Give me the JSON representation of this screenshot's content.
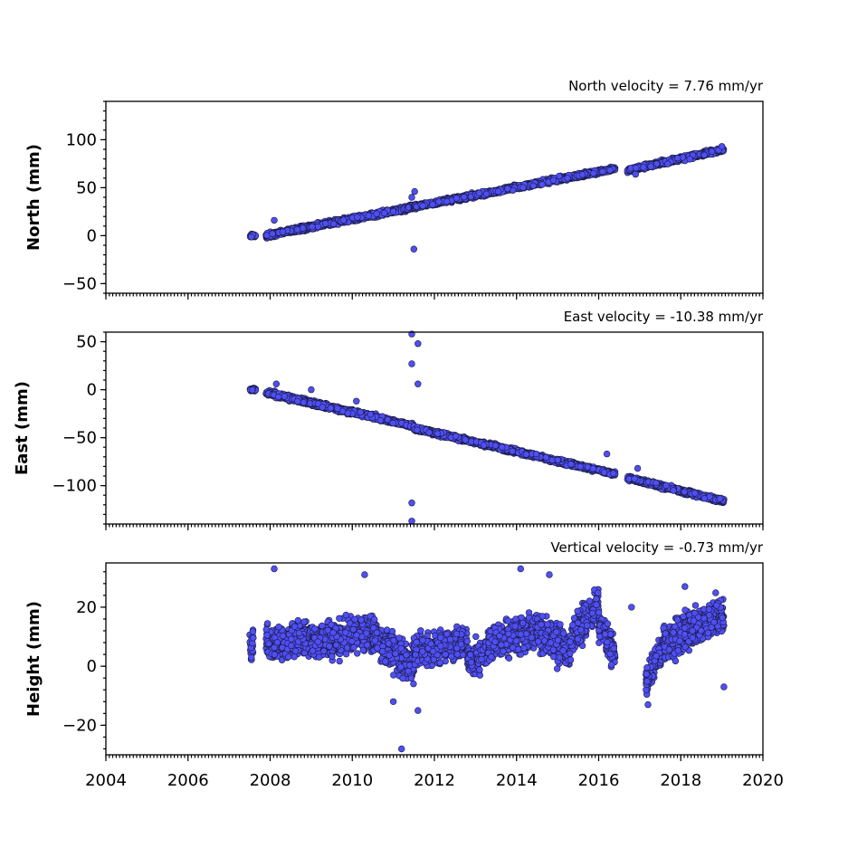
{
  "chart_data": [
    {
      "type": "scatter",
      "title": "North velocity = 7.76 mm/yr",
      "ylabel": "North (mm)",
      "xlim": [
        2004,
        2020
      ],
      "ylim": [
        -60,
        140
      ],
      "yticks": [
        -50,
        0,
        50,
        100
      ],
      "marker_color": "#4f4ff5",
      "segments": [
        {
          "x0": 2007.5,
          "x1": 2007.65,
          "y0": 0,
          "y1": 0,
          "noise": 1.5
        },
        {
          "x0": 2007.9,
          "x1": 2011.5,
          "y0": 0,
          "y1": 30,
          "noise": 2.5
        },
        {
          "x0": 2011.5,
          "x1": 2016.4,
          "y0": 30,
          "y1": 70,
          "noise": 2.2
        },
        {
          "x0": 2016.7,
          "x1": 2019.05,
          "y0": 68,
          "y1": 90,
          "noise": 2.2
        }
      ],
      "outliers": [
        {
          "x": 2011.5,
          "y": -14
        },
        {
          "x": 2011.52,
          "y": 46
        },
        {
          "x": 2011.45,
          "y": 40
        },
        {
          "x": 2008.1,
          "y": 16
        },
        {
          "x": 2016.9,
          "y": 64
        },
        {
          "x": 2019.0,
          "y": 93
        }
      ]
    },
    {
      "type": "scatter",
      "title": "East velocity = -10.38 mm/yr",
      "ylabel": "East (mm)",
      "xlim": [
        2004,
        2020
      ],
      "ylim": [
        -140,
        60
      ],
      "yticks": [
        -100,
        -50,
        0,
        50
      ],
      "marker_color": "#4f4ff5",
      "segments": [
        {
          "x0": 2007.5,
          "x1": 2007.65,
          "y0": 0,
          "y1": 0,
          "noise": 1.5
        },
        {
          "x0": 2007.9,
          "x1": 2011.5,
          "y0": -3,
          "y1": -38,
          "noise": 2.5
        },
        {
          "x0": 2011.5,
          "x1": 2016.4,
          "y0": -40,
          "y1": -88,
          "noise": 2.3
        },
        {
          "x0": 2016.7,
          "x1": 2019.05,
          "y0": -92,
          "y1": -116,
          "noise": 2.3
        }
      ],
      "outliers": [
        {
          "x": 2011.45,
          "y": 58
        },
        {
          "x": 2011.6,
          "y": 48
        },
        {
          "x": 2011.45,
          "y": 27
        },
        {
          "x": 2011.6,
          "y": 6
        },
        {
          "x": 2011.45,
          "y": -118
        },
        {
          "x": 2011.45,
          "y": -137
        },
        {
          "x": 2008.15,
          "y": 6
        },
        {
          "x": 2009.0,
          "y": 0
        },
        {
          "x": 2010.1,
          "y": -12
        },
        {
          "x": 2016.2,
          "y": -67
        },
        {
          "x": 2016.95,
          "y": -82
        }
      ]
    },
    {
      "type": "scatter",
      "title": "Vertical velocity = -0.73 mm/yr",
      "ylabel": "Height (mm)",
      "xlim": [
        2004,
        2020
      ],
      "ylim": [
        -30,
        35
      ],
      "yticks": [
        -20,
        0,
        20
      ],
      "xticks": [
        2004,
        2006,
        2008,
        2010,
        2012,
        2014,
        2016,
        2018,
        2020
      ],
      "marker_color": "#4f4ff5",
      "segments": [
        {
          "x0": 2007.5,
          "x1": 2007.6,
          "y0": 5,
          "y1": 8,
          "noise": 5
        },
        {
          "x0": 2007.9,
          "x1": 2009.0,
          "y0": 8,
          "y1": 10,
          "noise": 6
        },
        {
          "x0": 2009.0,
          "x1": 2010.5,
          "y0": 8,
          "y1": 12,
          "noise": 6
        },
        {
          "x0": 2010.5,
          "x1": 2011.5,
          "y0": 10,
          "y1": 0,
          "noise": 6
        },
        {
          "x0": 2011.5,
          "x1": 2012.8,
          "y0": 5,
          "y1": 8,
          "noise": 5
        },
        {
          "x0": 2012.8,
          "x1": 2013.3,
          "y0": 2,
          "y1": 5,
          "noise": 5
        },
        {
          "x0": 2013.3,
          "x1": 2014.5,
          "y0": 8,
          "y1": 12,
          "noise": 6
        },
        {
          "x0": 2014.5,
          "x1": 2015.3,
          "y0": 12,
          "y1": 6,
          "noise": 6
        },
        {
          "x0": 2015.3,
          "x1": 2016.0,
          "y0": 8,
          "y1": 22,
          "noise": 6
        },
        {
          "x0": 2016.0,
          "x1": 2016.4,
          "y0": 15,
          "y1": 3,
          "noise": 5
        },
        {
          "x0": 2017.15,
          "x1": 2017.6,
          "y0": -5,
          "y1": 8,
          "noise": 5
        },
        {
          "x0": 2017.6,
          "x1": 2019.05,
          "y0": 8,
          "y1": 18,
          "noise": 6
        }
      ],
      "outliers": [
        {
          "x": 2011.2,
          "y": -28
        },
        {
          "x": 2014.1,
          "y": 33
        },
        {
          "x": 2014.8,
          "y": 31
        },
        {
          "x": 2008.1,
          "y": 33
        },
        {
          "x": 2010.3,
          "y": 31
        },
        {
          "x": 2011.6,
          "y": -15
        },
        {
          "x": 2019.05,
          "y": -7
        },
        {
          "x": 2016.8,
          "y": 20
        },
        {
          "x": 2017.2,
          "y": -13
        },
        {
          "x": 2018.1,
          "y": 27
        },
        {
          "x": 2011.0,
          "y": -12
        }
      ]
    }
  ]
}
